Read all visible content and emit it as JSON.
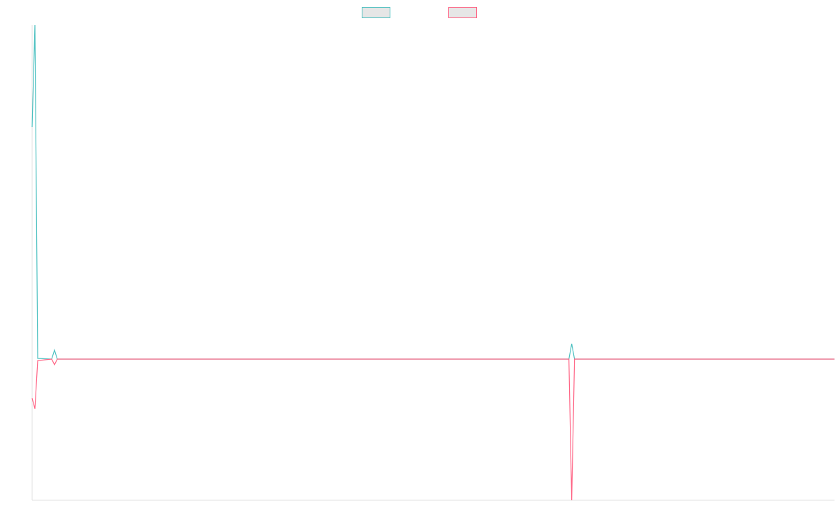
{
  "chart_data": {
    "type": "line",
    "x": [
      0,
      1,
      2,
      7,
      8,
      9,
      192,
      193,
      194,
      287
    ],
    "xlim": [
      0,
      287
    ],
    "ylim": [
      0,
      680
    ],
    "series": [
      {
        "color": "#4bc0c0",
        "values": [
          534,
          680,
          203,
          202,
          215,
          202,
          202,
          224,
          202,
          202
        ]
      },
      {
        "color": "#ff6384",
        "values": [
          146,
          131,
          200,
          202,
          194,
          202,
          202,
          0,
          202,
          202
        ]
      }
    ]
  }
}
